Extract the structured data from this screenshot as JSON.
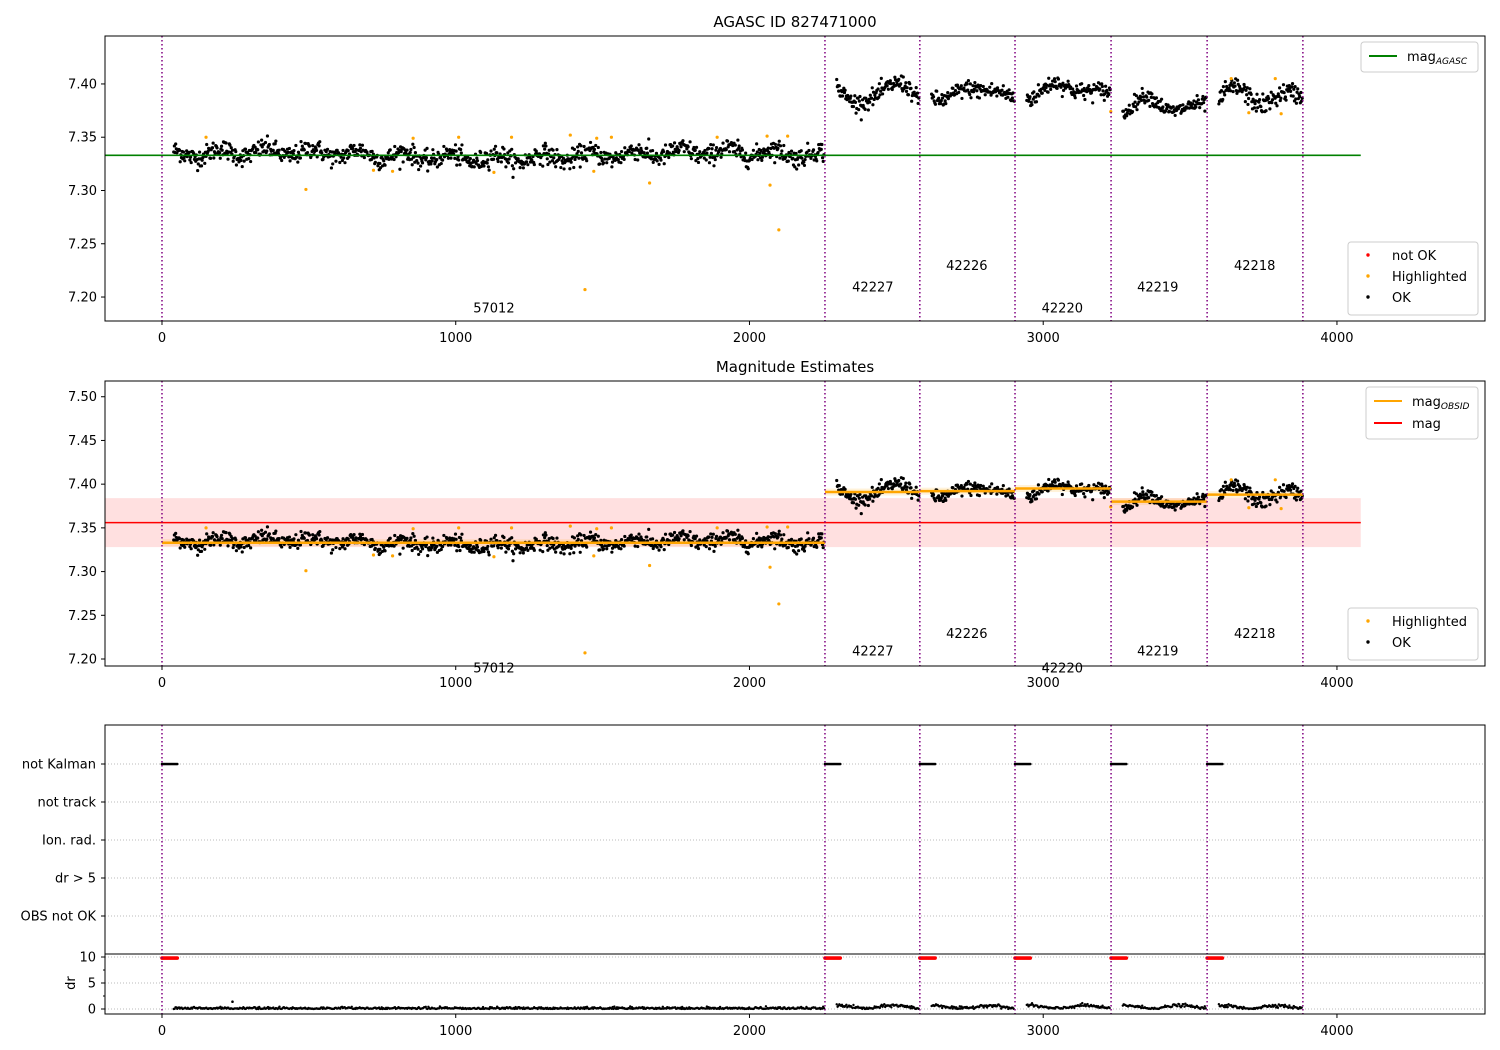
{
  "chart_data": [
    {
      "type": "scatter",
      "title": "AGASC ID 827471000",
      "xlim": [
        -194,
        4504
      ],
      "ylim": [
        7.1775,
        7.445
      ],
      "xticks": [
        0,
        1000,
        2000,
        3000,
        4000
      ],
      "yticks": [
        7.2,
        7.25,
        7.3,
        7.35,
        7.4
      ],
      "mag_agasc": 7.333,
      "mag_agasc_range": [
        -194,
        4081
      ],
      "legend_lines": [
        {
          "label": "mag",
          "sub": "AGASC",
          "color": "#008000"
        }
      ],
      "legend_points": [
        {
          "label": "not OK",
          "color": "#ff0000"
        },
        {
          "label": "Highlighted",
          "color": "#ffa500"
        },
        {
          "label": "OK",
          "color": "#000000"
        }
      ]
    },
    {
      "type": "scatter",
      "title": "Magnitude Estimates",
      "xlim": [
        -194,
        4504
      ],
      "ylim": [
        7.192,
        7.518
      ],
      "xticks": [
        0,
        1000,
        2000,
        3000,
        4000
      ],
      "yticks": [
        7.2,
        7.25,
        7.3,
        7.35,
        7.4,
        7.45,
        7.5
      ],
      "mag": 7.356,
      "mag_band": [
        7.328,
        7.384
      ],
      "legend_lines": [
        {
          "label": "mag",
          "sub": "OBSID",
          "color": "#ffa500"
        },
        {
          "label": "mag",
          "sub": "",
          "color": "#ff0000"
        }
      ],
      "legend_points": [
        {
          "label": "Highlighted",
          "color": "#ffa500"
        },
        {
          "label": "OK",
          "color": "#000000"
        }
      ]
    },
    {
      "type": "scatter",
      "title": "",
      "categories": [
        "not Kalman",
        "not track",
        "Ion. rad.",
        "dr > 5",
        "OBS not OK"
      ],
      "dr_ylabel": "dr",
      "dr_ylim": [
        -0.96,
        10.58
      ],
      "dr_yticks": [
        0,
        5,
        10
      ],
      "xticks": [
        0,
        1000,
        2000,
        3000,
        4000
      ]
    }
  ],
  "observations": [
    {
      "obsid": "57012",
      "start": 0,
      "end": 2257,
      "mean": 7.333,
      "sd": 0.0045,
      "label_x": 1130,
      "label_y": 7.19,
      "wave": 0.003
    },
    {
      "obsid": "42227",
      "start": 2257,
      "end": 2580,
      "mean": 7.391,
      "sd": 0.004,
      "label_x": 2420,
      "label_y": 7.21,
      "wave": 0.012
    },
    {
      "obsid": "42226",
      "start": 2580,
      "end": 2904,
      "mean": 7.392,
      "sd": 0.004,
      "label_x": 2740,
      "label_y": 7.23,
      "wave": 0.006
    },
    {
      "obsid": "42220",
      "start": 2904,
      "end": 3231,
      "mean": 7.395,
      "sd": 0.004,
      "label_x": 3065,
      "label_y": 7.19,
      "wave": 0.005
    },
    {
      "obsid": "42219",
      "start": 3231,
      "end": 3558,
      "mean": 7.38,
      "sd": 0.0035,
      "label_x": 3390,
      "label_y": 7.21,
      "wave": 0.006
    },
    {
      "obsid": "42218",
      "start": 3558,
      "end": 3884,
      "mean": 7.388,
      "sd": 0.0045,
      "label_x": 3720,
      "label_y": 7.23,
      "wave": 0.005
    }
  ],
  "highlighted": [
    [
      150,
      7.35
    ],
    [
      490,
      7.301
    ],
    [
      720,
      7.319
    ],
    [
      785,
      7.318
    ],
    [
      855,
      7.349
    ],
    [
      1010,
      7.35
    ],
    [
      1130,
      7.317
    ],
    [
      1190,
      7.35
    ],
    [
      1390,
      7.352
    ],
    [
      1440,
      7.207
    ],
    [
      1470,
      7.318
    ],
    [
      1480,
      7.349
    ],
    [
      1530,
      7.35
    ],
    [
      1660,
      7.307
    ],
    [
      1890,
      7.35
    ],
    [
      2060,
      7.351
    ],
    [
      2070,
      7.305
    ],
    [
      2100,
      7.263
    ],
    [
      2130,
      7.351
    ],
    [
      3230,
      7.374
    ],
    [
      3640,
      7.405
    ],
    [
      3700,
      7.373
    ],
    [
      3790,
      7.405
    ],
    [
      3810,
      7.372
    ]
  ],
  "not_kalman_duration": 55,
  "colors": {
    "ok": "#000000",
    "highlighted": "#ffa500",
    "not_ok": "#ff0000",
    "agasc": "#008000",
    "mag": "#ff0000",
    "obsid": "#ffa500",
    "boundary": "#800080"
  }
}
